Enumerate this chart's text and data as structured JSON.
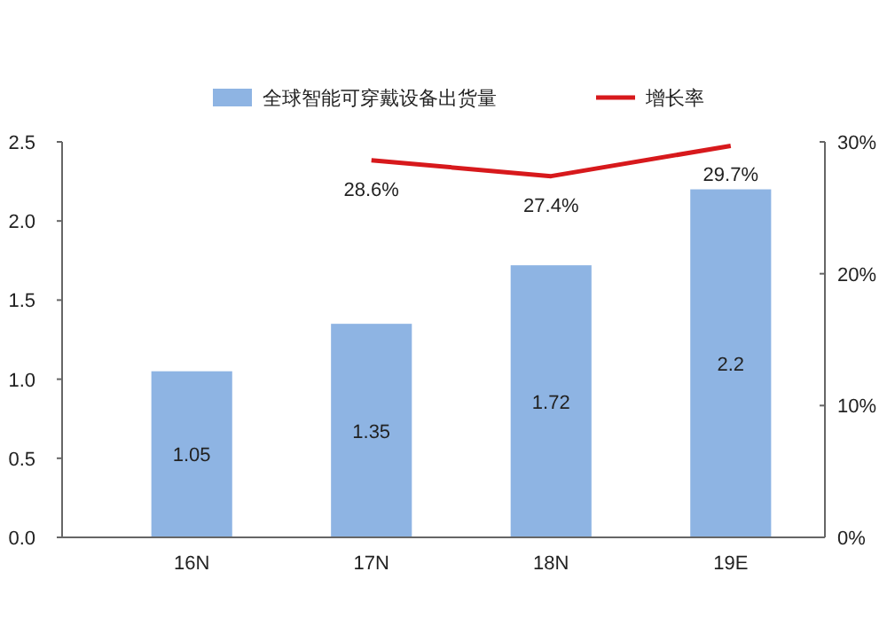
{
  "chart_data": {
    "type": "bar",
    "categories": [
      "16N",
      "17N",
      "18N",
      "19E"
    ],
    "series": [
      {
        "name": "全球智能可穿戴设备出货量",
        "color": "#8eb4e3",
        "values": [
          1.05,
          1.35,
          1.72,
          2.2
        ],
        "value_labels": [
          "1.05",
          "1.35",
          "1.72",
          "2.2"
        ]
      },
      {
        "name": "增长率",
        "type": "line",
        "axis": "y2",
        "color": "#d7191c",
        "values": [
          null,
          28.6,
          27.4,
          29.7
        ],
        "value_labels": [
          null,
          "28.6%",
          "27.4%",
          "29.7%"
        ]
      }
    ],
    "ylim": [
      0,
      2.5
    ],
    "yticks": [
      {
        "value": 0,
        "label": "0.0"
      },
      {
        "value": 0.5,
        "label": "0.5"
      },
      {
        "value": 1,
        "label": "1.0"
      },
      {
        "value": 1.5,
        "label": "1.5"
      },
      {
        "value": 2,
        "label": "2.0"
      },
      {
        "value": 2.5,
        "label": "2.5"
      }
    ],
    "y2lim": [
      0,
      30
    ],
    "y2ticks": [
      {
        "value": 0,
        "label": "0%"
      },
      {
        "value": 10,
        "label": "10%"
      },
      {
        "value": 20,
        "label": "20%"
      },
      {
        "value": 30,
        "label": "30%"
      }
    ],
    "legend": "top",
    "grid": false,
    "marker": "none"
  }
}
